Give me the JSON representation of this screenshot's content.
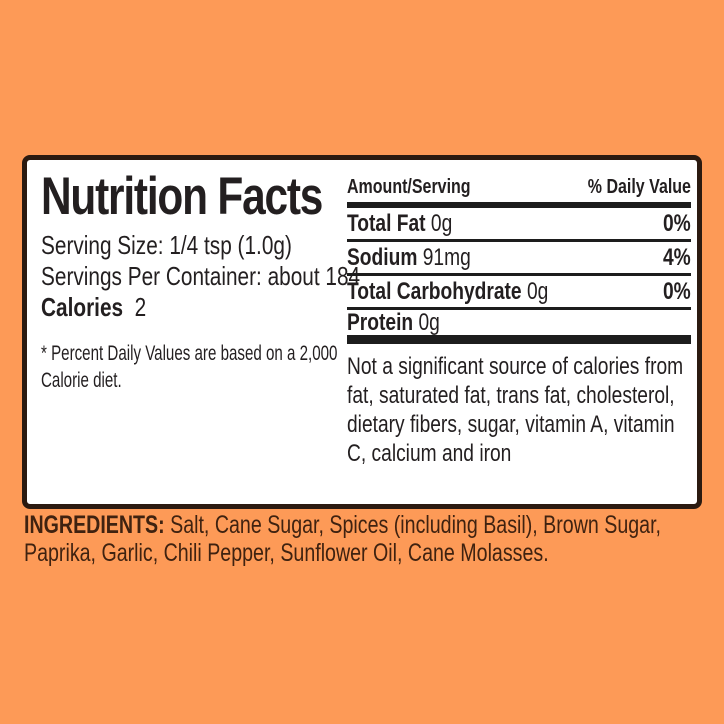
{
  "colors": {
    "bg": "#fd9a57",
    "border": "#2b1a10",
    "label-text": "#231f20",
    "rule": "#1d1d1d",
    "ingredients-text": "#3f2210"
  },
  "label": {
    "title": "Nutrition Facts",
    "serving_size": "Serving Size: 1/4 tsp (1.0g)",
    "servings_per_container": "Servings Per Container: about 184",
    "calories_label": "Calories",
    "calories_value": "2",
    "footnote": "* Percent Daily Values are based on a 2,000 Calorie diet.",
    "table": {
      "amount_header": "Amount/Serving",
      "dv_header": "% Daily Value",
      "rows": [
        {
          "name": "Total Fat",
          "amount": "0g",
          "dv": "0%"
        },
        {
          "name": "Sodium",
          "amount": "91mg",
          "dv": "4%"
        },
        {
          "name": "Total Carbohydrate",
          "amount": "0g",
          "dv": "0%"
        },
        {
          "name": "Protein",
          "amount": "0g",
          "dv": ""
        }
      ],
      "disclaimer": "Not a significant source of calories from fat,  saturated fat, trans fat, cholesterol, dietary fibers, sugar, vitamin A, vitamin C, calcium and iron"
    }
  },
  "ingredients": {
    "label": "INGREDIENTS:",
    "text": "Salt, Cane Sugar, Spices (including Basil), Brown Sugar, Paprika, Garlic, Chili Pepper, Sunflower Oil, Cane Molasses."
  }
}
